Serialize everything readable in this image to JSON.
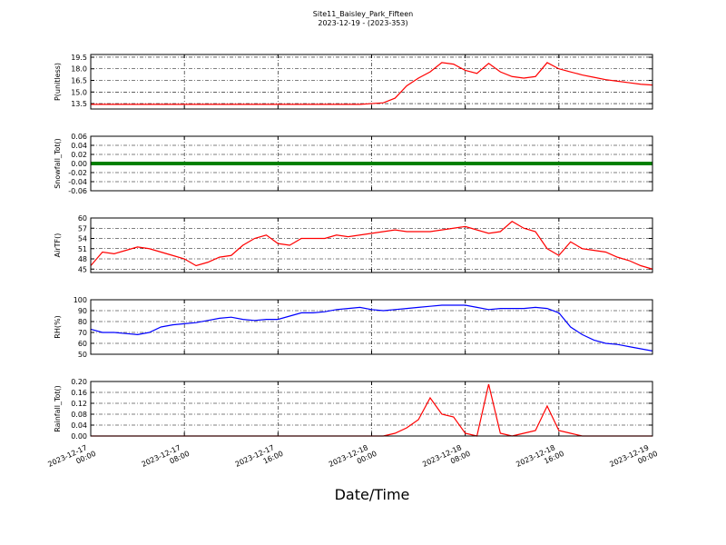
{
  "title": "Site11_Baisley_Park_Fifteen",
  "subtitle": "2023-12-19 - (2023-353)",
  "xlabel": "Date/Time",
  "x": [
    "2023-12-17 00:00",
    "2023-12-17 01:00",
    "2023-12-17 02:00",
    "2023-12-17 03:00",
    "2023-12-17 04:00",
    "2023-12-17 05:00",
    "2023-12-17 06:00",
    "2023-12-17 07:00",
    "2023-12-17 08:00",
    "2023-12-17 09:00",
    "2023-12-17 10:00",
    "2023-12-17 11:00",
    "2023-12-17 12:00",
    "2023-12-17 13:00",
    "2023-12-17 14:00",
    "2023-12-17 15:00",
    "2023-12-17 16:00",
    "2023-12-17 17:00",
    "2023-12-17 18:00",
    "2023-12-17 19:00",
    "2023-12-17 20:00",
    "2023-12-17 21:00",
    "2023-12-17 22:00",
    "2023-12-17 23:00",
    "2023-12-18 00:00",
    "2023-12-18 01:00",
    "2023-12-18 02:00",
    "2023-12-18 03:00",
    "2023-12-18 04:00",
    "2023-12-18 05:00",
    "2023-12-18 06:00",
    "2023-12-18 07:00",
    "2023-12-18 08:00",
    "2023-12-18 09:00",
    "2023-12-18 10:00",
    "2023-12-18 11:00",
    "2023-12-18 12:00",
    "2023-12-18 13:00",
    "2023-12-18 14:00",
    "2023-12-18 15:00",
    "2023-12-18 16:00",
    "2023-12-18 17:00",
    "2023-12-18 18:00",
    "2023-12-18 19:00",
    "2023-12-18 20:00",
    "2023-12-18 21:00",
    "2023-12-18 22:00",
    "2023-12-18 23:00",
    "2023-12-19 00:00"
  ],
  "xlim": [
    "2023-12-17 00:00",
    "2023-12-19 00:00"
  ],
  "xticks": [
    "2023-12-17 00:00",
    "2023-12-17 08:00",
    "2023-12-17 16:00",
    "2023-12-18 00:00",
    "2023-12-18 08:00",
    "2023-12-18 16:00",
    "2023-12-19 00:00"
  ],
  "grid": true,
  "chart_data": [
    {
      "type": "line",
      "ylabel": "P(unitless)",
      "color": "#ff0000",
      "ylim": [
        12.8,
        19.85
      ],
      "yticks": [
        13.5,
        {
          "value": 15,
          "label": "15.0"
        },
        16.5,
        {
          "value": 18,
          "label": "18.0"
        },
        19.5
      ],
      "values": [
        13.4,
        13.4,
        13.4,
        13.4,
        13.4,
        13.4,
        13.4,
        13.4,
        13.4,
        13.4,
        13.4,
        13.4,
        13.4,
        13.4,
        13.4,
        13.4,
        13.4,
        13.4,
        13.4,
        13.4,
        13.4,
        13.4,
        13.4,
        13.4,
        13.5,
        13.6,
        14.2,
        15.8,
        16.8,
        17.6,
        18.8,
        18.6,
        17.8,
        17.4,
        18.7,
        17.6,
        17.0,
        16.8,
        17.0,
        18.8,
        18.0,
        17.6,
        17.2,
        16.9,
        16.6,
        16.4,
        16.2,
        16.0,
        15.9
      ]
    },
    {
      "type": "line",
      "ylabel": "Snowfall_Tot()",
      "color": "#008000",
      "ylim": [
        -0.06,
        0.06
      ],
      "yticks": [
        -0.06,
        -0.04,
        -0.02,
        {
          "value": 0,
          "label": "0.00"
        },
        0.02,
        0.04,
        0.06
      ],
      "values": [
        0,
        0,
        0,
        0,
        0,
        0,
        0,
        0,
        0,
        0,
        0,
        0,
        0,
        0,
        0,
        0,
        0,
        0,
        0,
        0,
        0,
        0,
        0,
        0,
        0,
        0,
        0,
        0,
        0,
        0,
        0,
        0,
        0,
        0,
        0,
        0,
        0,
        0,
        0,
        0,
        0,
        0,
        0,
        0,
        0,
        0,
        0,
        0,
        0
      ]
    },
    {
      "type": "line",
      "ylabel": "AirTF()",
      "color": "#ff0000",
      "ylim": [
        44,
        60
      ],
      "yticks": [
        45,
        48,
        51,
        54,
        57,
        60
      ],
      "values": [
        46,
        50,
        49.5,
        50.5,
        51.5,
        51,
        50,
        49,
        48,
        46,
        47,
        48.5,
        49,
        52,
        54,
        55,
        52.5,
        52,
        54,
        54,
        54,
        55,
        54.5,
        55,
        55.5,
        56,
        56.5,
        56,
        56,
        56,
        56.5,
        57,
        57.5,
        56.5,
        55.5,
        56,
        59,
        57,
        56,
        51,
        49,
        53,
        51,
        50.5,
        50,
        48.5,
        47.5,
        46,
        45
      ]
    },
    {
      "type": "line",
      "ylabel": "RH(%)",
      "color": "#0000ff",
      "ylim": [
        50,
        100
      ],
      "yticks": [
        50,
        60,
        70,
        80,
        90,
        100
      ],
      "values": [
        73,
        70,
        70,
        69,
        68,
        70,
        75,
        77,
        78,
        79,
        81,
        83,
        84,
        82,
        81,
        82,
        82,
        85,
        88,
        88,
        89,
        91,
        92,
        93,
        91,
        90,
        91,
        92,
        93,
        94,
        95,
        95,
        95,
        93,
        91,
        92,
        92,
        92,
        93,
        92,
        88,
        75,
        68,
        63,
        60,
        59,
        57,
        55,
        53
      ]
    },
    {
      "type": "line",
      "ylabel": "Rainfall_Tot()",
      "color": "#ff0000",
      "ylim": [
        0,
        0.2
      ],
      "yticks": [
        {
          "value": 0,
          "label": "0.00"
        },
        0.04,
        0.08,
        0.12,
        0.16,
        {
          "value": 0.2,
          "label": "0.20"
        }
      ],
      "values": [
        0,
        0,
        0,
        0,
        0,
        0,
        0,
        0,
        0,
        0,
        0,
        0,
        0,
        0,
        0,
        0,
        0,
        0,
        0,
        0,
        0,
        0,
        0,
        0,
        0,
        0,
        0.01,
        0.03,
        0.06,
        0.14,
        0.08,
        0.07,
        0.01,
        0,
        0.19,
        0.01,
        0,
        0.01,
        0.02,
        0.11,
        0.02,
        0.01,
        0,
        0,
        0,
        0,
        0,
        0,
        0
      ]
    }
  ]
}
